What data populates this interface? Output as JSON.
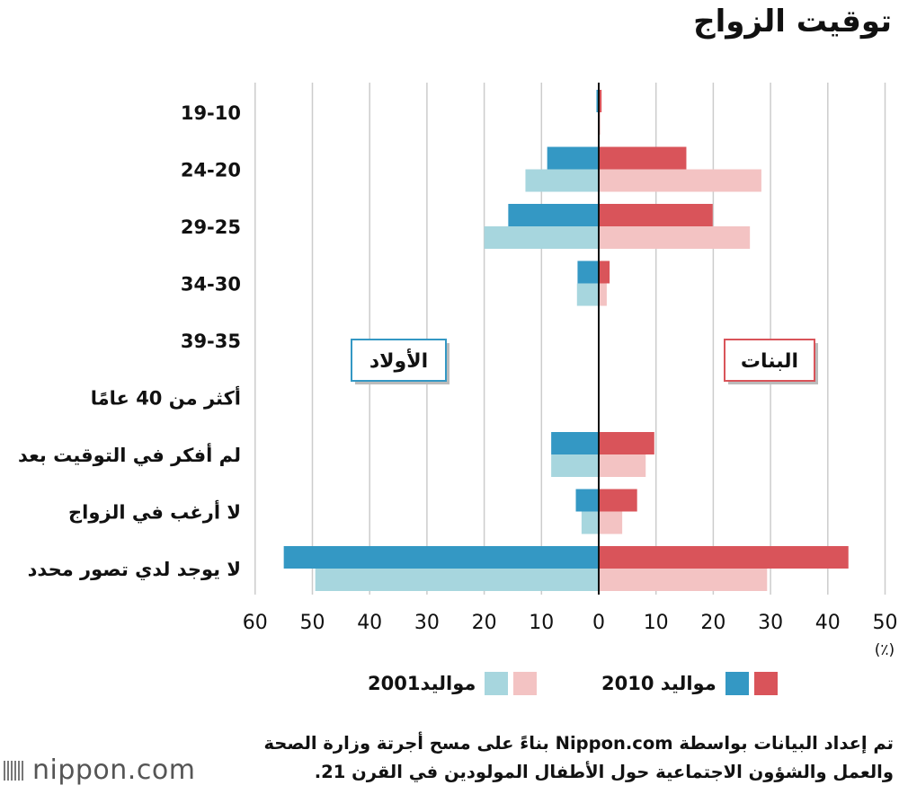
{
  "title": "توقيت الزواج",
  "unit": "(٪)",
  "legend": {
    "births_2010": "مواليد 2010",
    "births_2001": "مواليد2001"
  },
  "boxes": {
    "boys": "الأولاد",
    "girls": "البنات"
  },
  "source": {
    "line1": "تم إعداد البيانات بواسطة Nippon.com بناءً على مسح أجرتة وزارة الصحة",
    "line2": "والعمل والشؤون الاجتماعية حول الأطفال المولودين في القرن 21."
  },
  "logo": "nippon.com",
  "colors": {
    "boys_2010": "#3498c4",
    "boys_2001": "#a7d6de",
    "girls_2010": "#d9545a",
    "girls_2001": "#f3c3c3",
    "grid": "#cccccc",
    "axis": "#111111"
  },
  "chart_data": {
    "type": "bar",
    "orientation": "horizontal-butterfly",
    "categories": [
      "19-10",
      "24-20",
      "29-25",
      "34-30",
      "39-35",
      "أكثر من 40 عامًا",
      "لم أفكر في التوقيت بعد",
      "لا أرغب في الزواج",
      "لا يوجد لدي تصور محدد"
    ],
    "x_ticks_left": [
      "60",
      "50",
      "40",
      "30",
      "20",
      "10",
      "0"
    ],
    "x_ticks_right": [
      "10",
      "20",
      "30",
      "40",
      "50"
    ],
    "xlim_left": [
      0,
      60
    ],
    "xlim_right": [
      0,
      50
    ],
    "grid": true,
    "series": [
      {
        "name": "مواليد 2010",
        "side": "boys",
        "values": [
          0.4,
          9,
          15.8,
          3.7,
          0.1,
          0,
          8.3,
          4,
          55
        ]
      },
      {
        "name": "مواليد2001",
        "side": "boys",
        "values": [
          0.1,
          12.8,
          20,
          3.8,
          0.1,
          0,
          8.3,
          3,
          49.5
        ]
      },
      {
        "name": "مواليد 2010",
        "side": "girls",
        "values": [
          0.5,
          15.3,
          19.9,
          1.9,
          0.1,
          0,
          9.7,
          6.7,
          43.6
        ]
      },
      {
        "name": "مواليد2001",
        "side": "girls",
        "values": [
          0.3,
          28.4,
          26.4,
          1.4,
          0.1,
          0,
          8.2,
          4.1,
          29.4
        ]
      }
    ]
  }
}
